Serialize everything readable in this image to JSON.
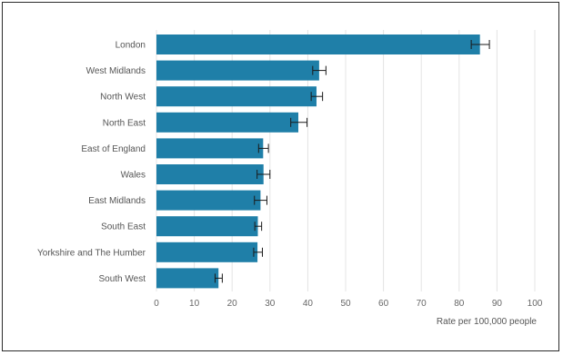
{
  "chart_data": {
    "type": "bar",
    "orientation": "horizontal",
    "categories": [
      "London",
      "West Midlands",
      "North West",
      "North East",
      "East of England",
      "Wales",
      "East Midlands",
      "South East",
      "Yorkshire and The Humber",
      "South West"
    ],
    "values": [
      85.5,
      43.0,
      42.3,
      37.5,
      28.2,
      28.3,
      27.5,
      26.8,
      26.7,
      16.4
    ],
    "error_low": [
      83.2,
      41.3,
      40.9,
      35.5,
      27.0,
      26.6,
      25.9,
      26.0,
      25.7,
      15.5
    ],
    "error_high": [
      88.0,
      44.8,
      43.9,
      39.8,
      29.6,
      30.0,
      29.2,
      27.8,
      28.0,
      17.4
    ],
    "xlabel": "Rate per 100,000 people",
    "ylabel": "",
    "title": "",
    "xlim": [
      0,
      100
    ],
    "xticks": [
      0,
      10,
      20,
      30,
      40,
      50,
      60,
      70,
      80,
      90,
      100
    ],
    "grid": true,
    "bar_color": "#1f7fa8",
    "error_color": "#1a1a1a"
  }
}
